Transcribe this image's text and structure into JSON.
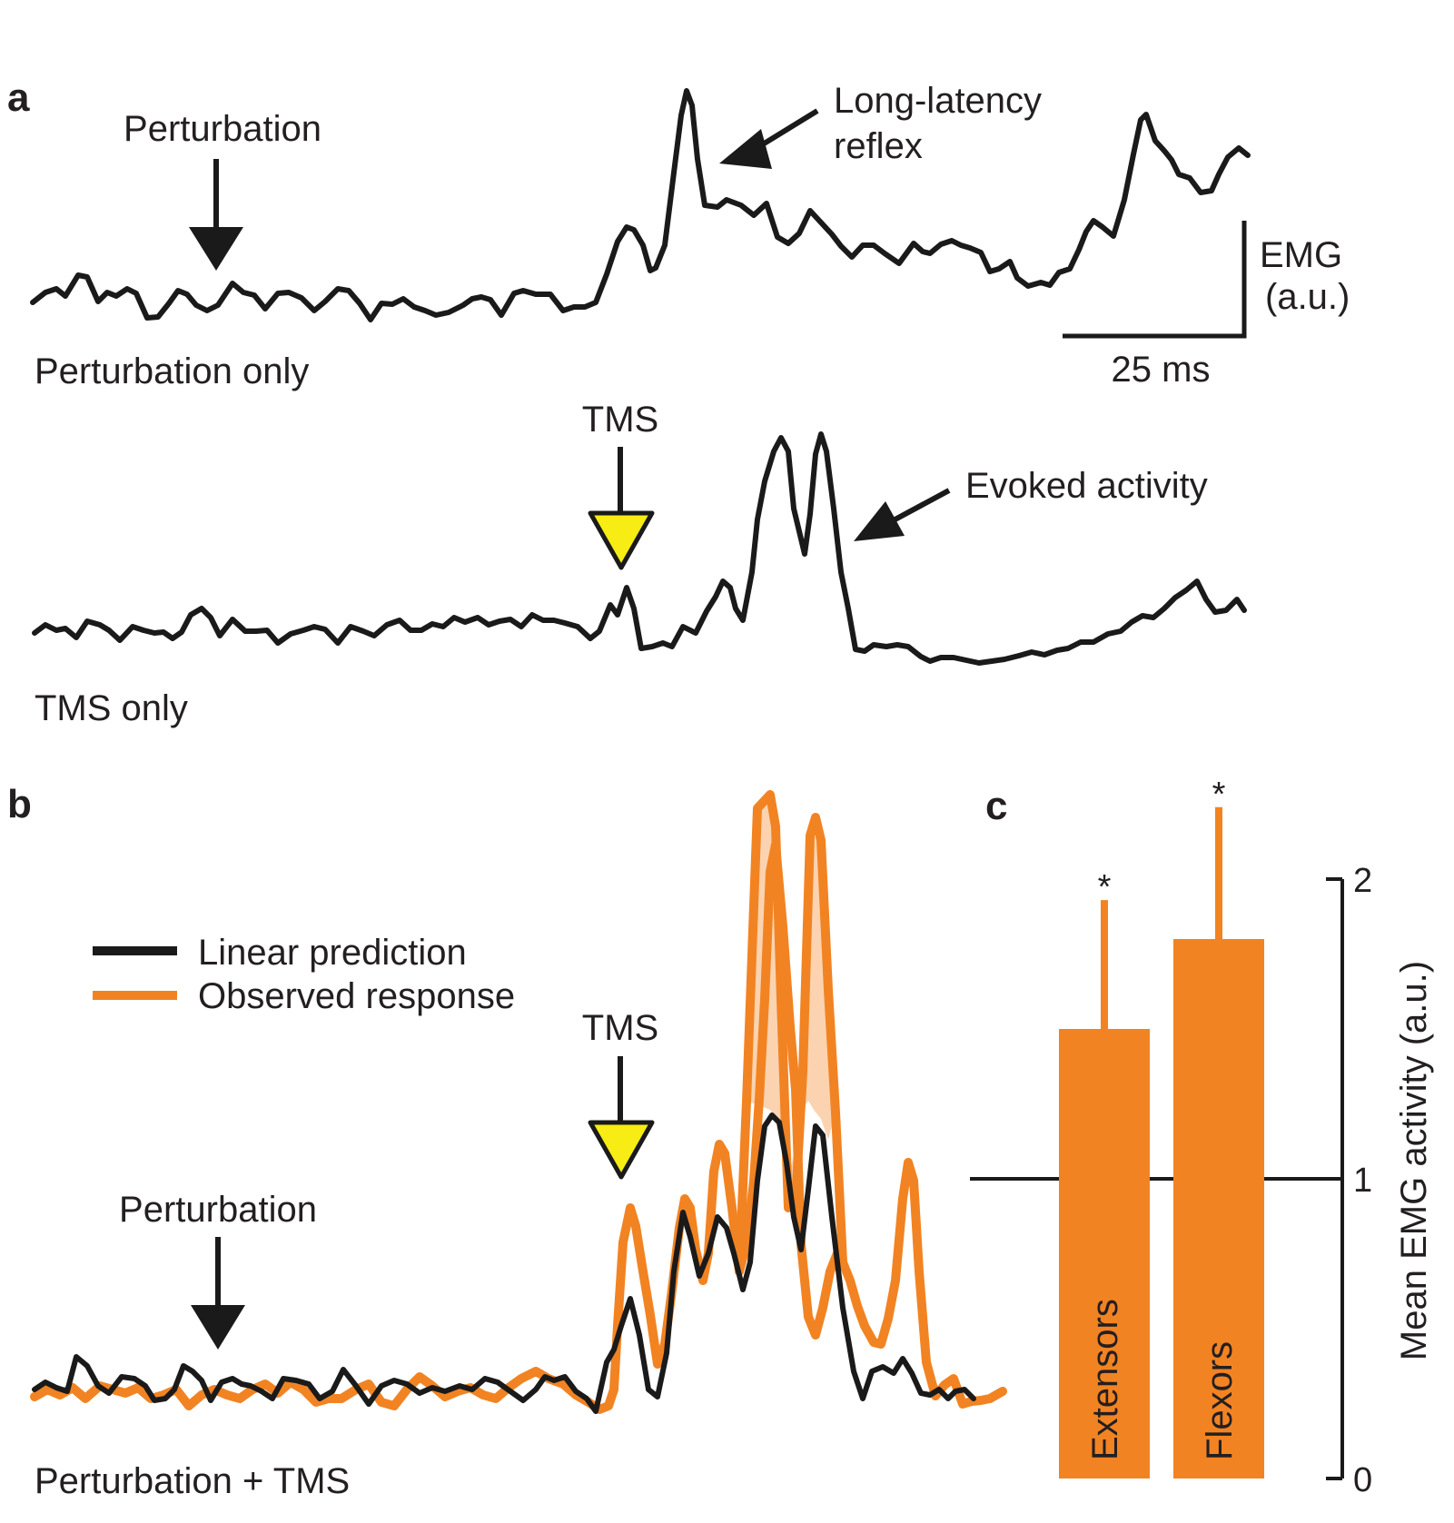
{
  "panel_a": {
    "letter": "a",
    "trace1_label": "Perturbation only",
    "trace2_label": "TMS only",
    "perturbation_arrow_label": "Perturbation",
    "reflex_label_line1": "Long-latency",
    "reflex_label_line2": "reflex",
    "tms_label": "TMS",
    "evoked_label": "Evoked  activity",
    "scale_y_label_line1": "EMG",
    "scale_y_label_line2": "(a.u.)",
    "scale_x_label": "25 ms"
  },
  "panel_b": {
    "letter": "b",
    "trace_label": "Perturbation + TMS",
    "perturbation_arrow_label": "Perturbation",
    "tms_label": "TMS",
    "legend": [
      {
        "label": "Linear prediction",
        "color": "#1a1a1a"
      },
      {
        "label": "Observed response",
        "color": "#f28322"
      }
    ]
  },
  "colors": {
    "trace": "#1a1a1a",
    "observed": "#f28322",
    "fill_between": "#fbd3b0",
    "tms_marker": "#f7ec13"
  },
  "chart_data": {
    "type": "bar",
    "panel_letter": "c",
    "categories": [
      "Extensors",
      "Flexors"
    ],
    "values": [
      1.5,
      1.8
    ],
    "error_upper": [
      1.93,
      2.24
    ],
    "significance": [
      "*",
      "*"
    ],
    "ylabel": "Mean EMG activity (a.u.)",
    "ylim": [
      0,
      2
    ],
    "yticks": [
      0,
      1,
      2
    ],
    "reference_line": 1,
    "bar_color": "#f28322",
    "grid": false
  }
}
